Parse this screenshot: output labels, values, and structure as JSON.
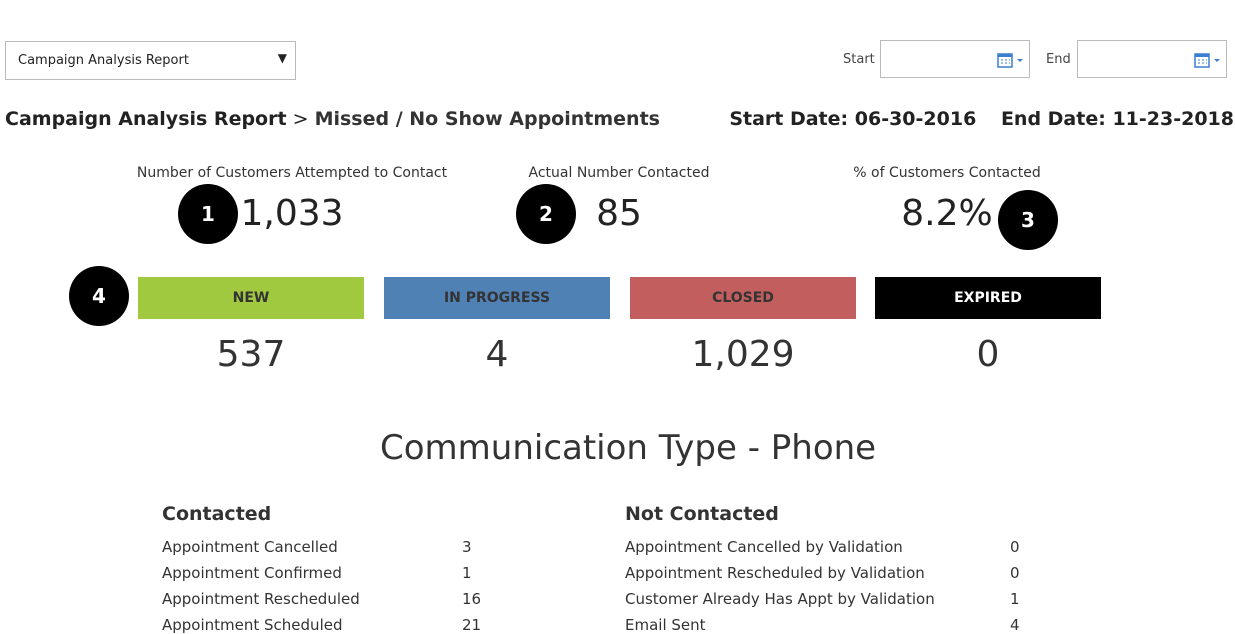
{
  "report_select": "Campaign Analysis Report",
  "date_filters": {
    "start_label": "Start",
    "end_label": "End"
  },
  "breadcrumb": {
    "report": "Campaign Analysis Report",
    "separator": ">",
    "page": "Missed / No Show Appointments"
  },
  "date_range": {
    "start_label": "Start Date:",
    "start": "06-30-2016",
    "end_label": "End Date:",
    "end": "11-23-2018"
  },
  "metrics": [
    {
      "label": "Number of Customers Attempted to Contact",
      "value": "1,033",
      "marker": "1"
    },
    {
      "label": "Actual Number Contacted",
      "value": "85",
      "marker": "2"
    },
    {
      "label": "% of Customers Contacted",
      "value": "8.2%",
      "marker": "3"
    }
  ],
  "status_marker": "4",
  "statuses": [
    {
      "label": "NEW",
      "count": "537"
    },
    {
      "label": "IN PROGRESS",
      "count": "4"
    },
    {
      "label": "CLOSED",
      "count": "1,029"
    },
    {
      "label": "EXPIRED",
      "count": "0"
    }
  ],
  "section_title": "Communication Type - Phone",
  "tables": [
    {
      "title": "Contacted",
      "rows": [
        [
          "Appointment Cancelled",
          "3"
        ],
        [
          "Appointment Confirmed",
          "1"
        ],
        [
          "Appointment Rescheduled",
          "16"
        ],
        [
          "Appointment Scheduled",
          "21"
        ]
      ]
    },
    {
      "title": "Not Contacted",
      "rows": [
        [
          "Appointment Cancelled by Validation",
          "0"
        ],
        [
          "Appointment Rescheduled by Validation",
          "0"
        ],
        [
          "Customer Already Has Appt by Validation",
          "1"
        ],
        [
          "Email Sent",
          "4"
        ]
      ]
    }
  ]
}
